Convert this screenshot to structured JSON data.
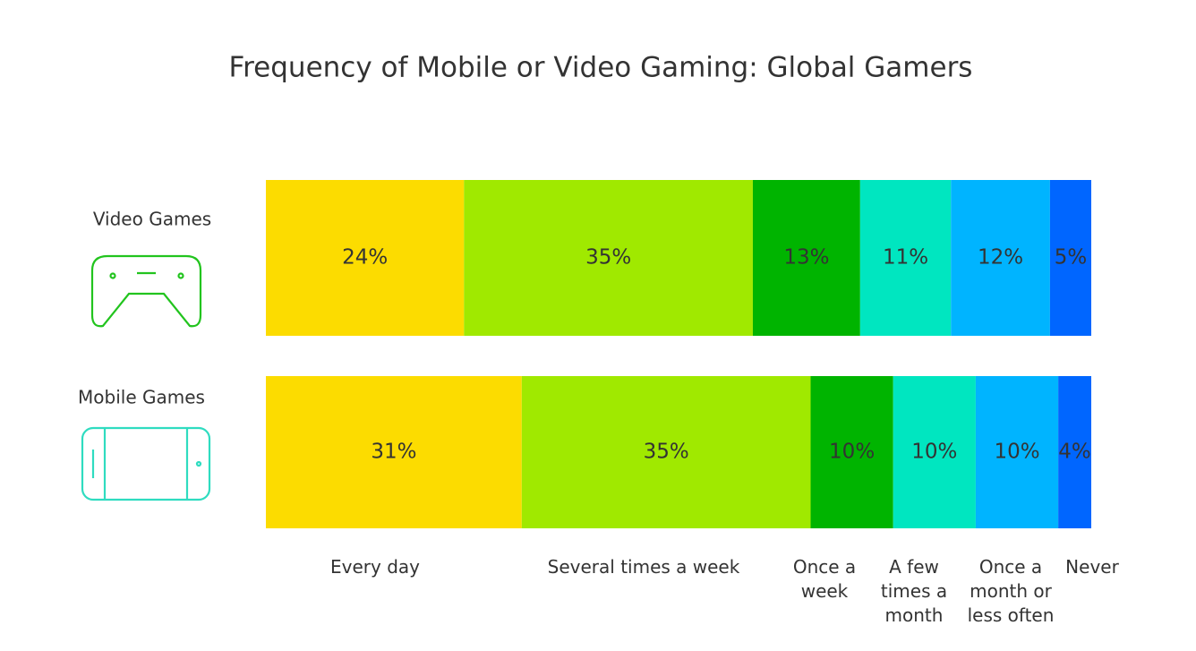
{
  "chart_data": {
    "type": "stacked-bar-100",
    "title": "Frequency of Mobile or Video Gaming: Global Gamers",
    "categories": [
      "Video Games",
      "Mobile Games"
    ],
    "series": [
      {
        "name": "Every day",
        "color": "#fcdc00",
        "values": [
          24,
          31
        ],
        "value_labels": [
          "24%",
          "31%"
        ]
      },
      {
        "name": "Several times a week",
        "color": "#a0e900",
        "values": [
          35,
          35
        ],
        "value_labels": [
          "35%",
          "35%"
        ]
      },
      {
        "name": "Once a week",
        "color": "#00b400",
        "values": [
          13,
          10
        ],
        "value_labels": [
          "13%",
          "10%"
        ]
      },
      {
        "name": "A few times a month",
        "color": "#00e6c0",
        "values": [
          11,
          10
        ],
        "value_labels": [
          "11%",
          "10%"
        ]
      },
      {
        "name": "Once a month or less often",
        "color": "#00b4ff",
        "values": [
          12,
          10
        ],
        "value_labels": [
          "12%",
          "10%"
        ]
      },
      {
        "name": "Never",
        "color": "#0066ff",
        "values": [
          5,
          4
        ],
        "value_labels": [
          "5%",
          "4%"
        ]
      }
    ]
  }
}
